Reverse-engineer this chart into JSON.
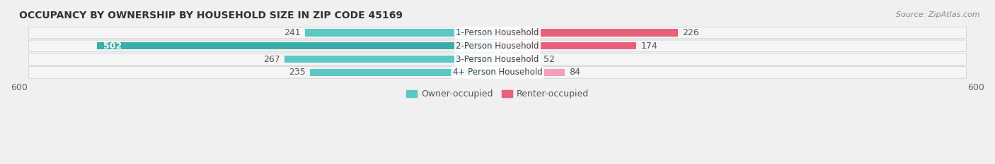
{
  "title": "OCCUPANCY BY OWNERSHIP BY HOUSEHOLD SIZE IN ZIP CODE 45169",
  "source": "Source: ZipAtlas.com",
  "categories": [
    "1-Person Household",
    "2-Person Household",
    "3-Person Household",
    "4+ Person Household"
  ],
  "owner_values": [
    241,
    502,
    267,
    235
  ],
  "renter_values": [
    226,
    174,
    52,
    84
  ],
  "owner_color": "#5bc8c5",
  "owner_color_large": "#3aadaa",
  "renter_color_large": "#e8607a",
  "renter_color_small": "#f0a0b8",
  "row_bg_color": "#efefef",
  "row_border_color": "#d8d8d8",
  "xlim": 600,
  "bar_height": 0.55,
  "title_fontsize": 10,
  "source_fontsize": 8,
  "label_fontsize": 9,
  "axis_fontsize": 9,
  "legend_fontsize": 9,
  "category_fontsize": 8.5,
  "large_owner_threshold": 300
}
